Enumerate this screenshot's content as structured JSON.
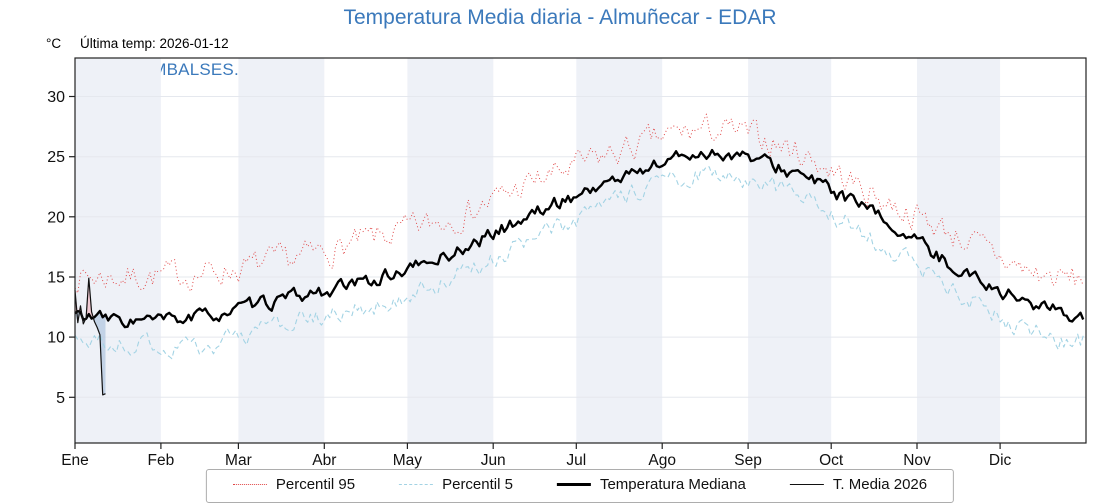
{
  "header": {
    "title": "Temperatura Media diaria - Almuñecar - EDAR",
    "y_unit": "°C",
    "last_temp": "Última temp: 2026-01-12",
    "watermark": "WWW.EMBALSES.NET"
  },
  "colors": {
    "title": "#3b79bb",
    "watermark": "#3b79bb",
    "band": "#eef1f7",
    "grid": "#e5e8ee",
    "axis": "#222222",
    "fill_above": "#f2a9b6",
    "fill_below": "#9fb8d8"
  },
  "chart_data": {
    "type": "line",
    "title": "Temperatura Media diaria - Almuñecar - EDAR",
    "xlabel": "",
    "ylabel": "°C",
    "x_tick_labels": [
      "Ene",
      "Feb",
      "Mar",
      "Abr",
      "May",
      "Jun",
      "Jul",
      "Ago",
      "Sep",
      "Oct",
      "Nov",
      "Dic"
    ],
    "month_days": [
      31,
      28,
      31,
      30,
      31,
      30,
      31,
      31,
      30,
      31,
      30,
      31
    ],
    "yticks": [
      5,
      10,
      15,
      20,
      25,
      30
    ],
    "ylim": [
      1.2,
      33.2
    ],
    "grid": true,
    "legend_position": "bottom",
    "annotations": [
      "Última temp: 2026-01-12"
    ],
    "series": [
      {
        "name": "Percentil 95",
        "type": "seasonal",
        "style": "dotted",
        "color": "#e04848",
        "width": 1,
        "noise": 1.0,
        "monthly_values": [
          15.0,
          15.3,
          16.3,
          18.0,
          19.9,
          22.9,
          25.4,
          27.2,
          25.7,
          21.8,
          18.4,
          15.1
        ]
      },
      {
        "name": "Percentil 5",
        "type": "seasonal",
        "style": "dashed",
        "color": "#a3d3e4",
        "width": 1.1,
        "noise": 0.7,
        "monthly_values": [
          9.4,
          9.3,
          11.0,
          12.4,
          14.9,
          18.1,
          21.4,
          23.5,
          22.0,
          18.2,
          13.6,
          10.2
        ]
      },
      {
        "name": "Temperatura Mediana",
        "type": "seasonal",
        "style": "solid",
        "color": "#000000",
        "width": 2.4,
        "noise": 0.5,
        "monthly_values": [
          11.4,
          11.7,
          13.1,
          14.6,
          16.9,
          20.3,
          23.2,
          25.3,
          23.8,
          20.2,
          15.7,
          12.5
        ]
      },
      {
        "name": "T. Media 2026",
        "type": "daily",
        "style": "solid",
        "color": "#111111",
        "width": 1.2,
        "values": [
          13.9,
          11.2,
          12.6,
          11.1,
          11.6,
          14.9,
          12.1,
          11.3,
          10.8,
          10.2,
          5.2,
          5.3
        ]
      }
    ]
  }
}
